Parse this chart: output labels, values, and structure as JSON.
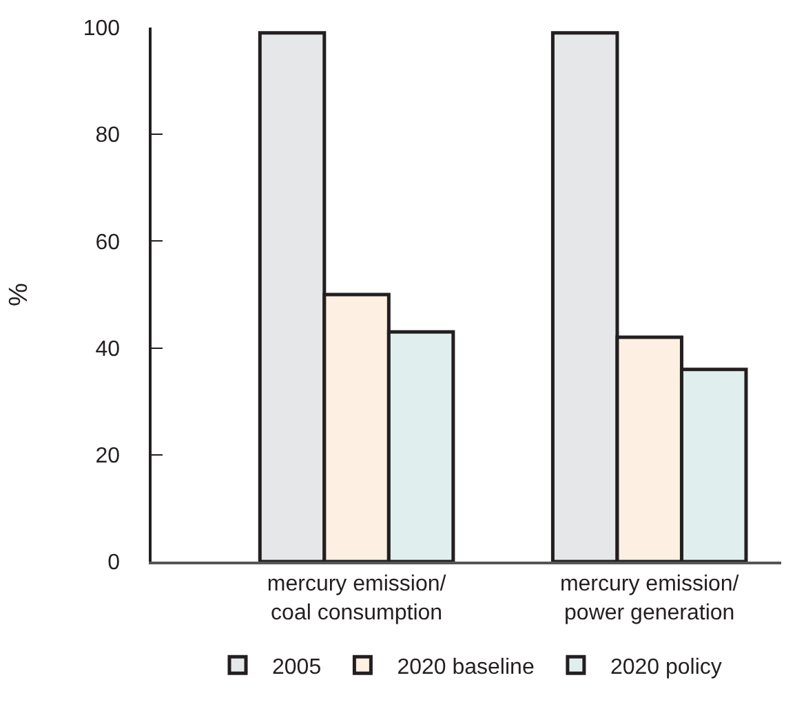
{
  "chart_data": {
    "type": "bar",
    "ylabel": "%",
    "categories": [
      "mercury emission/\ncoal consumption",
      "mercury emission/\npower generation"
    ],
    "series": [
      {
        "name": "2005",
        "color": "#e6e7e8",
        "values": [
          99,
          99
        ]
      },
      {
        "name": "2020 baseline",
        "color": "#fdf0e3",
        "values": [
          50,
          42
        ]
      },
      {
        "name": "2020 policy",
        "color": "#e0efee",
        "values": [
          43,
          36
        ]
      }
    ],
    "ylim": [
      0,
      100
    ],
    "yticks": [
      0,
      20,
      40,
      60,
      80,
      100
    ],
    "grid": false,
    "legend": "bottom"
  }
}
